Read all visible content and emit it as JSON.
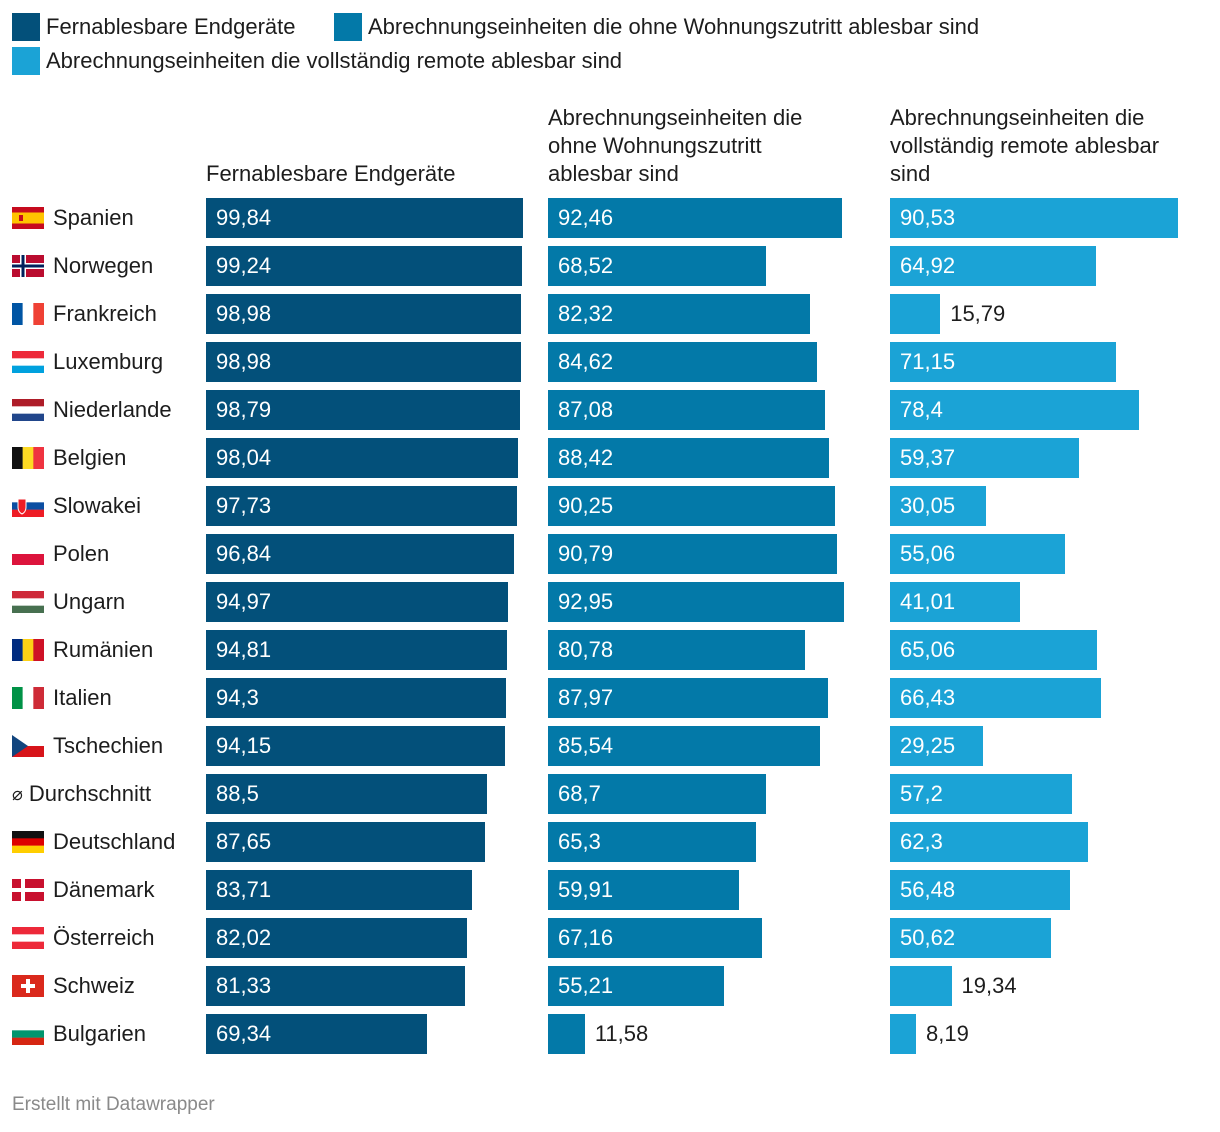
{
  "legend": [
    {
      "label": "Fernablesbare Endgeräte",
      "color": "#03507a"
    },
    {
      "label": "Abrechnungseinheiten die ohne Wohnungszutritt ablesbar sind",
      "color": "#0379a8"
    },
    {
      "label": "Abrechnungseinheiten die vollständig remote ablesbar sind",
      "color": "#1ba3d6"
    }
  ],
  "chart_data": {
    "type": "bar",
    "orientation": "horizontal",
    "layout": "small multiples",
    "xlim": [
      0,
      100
    ],
    "categories": [
      "Spanien",
      "Norwegen",
      "Frankreich",
      "Luxemburg",
      "Niederlande",
      "Belgien",
      "Slowakei",
      "Polen",
      "Ungarn",
      "Rumänien",
      "Italien",
      "Tschechien",
      "Durchschnitt",
      "Deutschland",
      "Dänemark",
      "Österreich",
      "Schweiz",
      "Bulgarien"
    ],
    "average_symbol": "⌀",
    "category_flags": [
      "es",
      "no",
      "fr",
      "lu",
      "nl",
      "be",
      "sk",
      "pl",
      "hu",
      "ro",
      "it",
      "cz",
      "avg",
      "de",
      "dk",
      "at",
      "ch",
      "bg"
    ],
    "series": [
      {
        "name": "Fernablesbare Endgeräte",
        "color": "#03507a",
        "values": [
          99.84,
          99.24,
          98.98,
          98.98,
          98.79,
          98.04,
          97.73,
          96.84,
          94.97,
          94.81,
          94.3,
          94.15,
          88.5,
          87.65,
          83.71,
          82.02,
          81.33,
          69.34
        ],
        "labels": [
          "99,84",
          "99,24",
          "98,98",
          "98,98",
          "98,79",
          "98,04",
          "97,73",
          "96,84",
          "94,97",
          "94,81",
          "94,3",
          "94,15",
          "88,5",
          "87,65",
          "83,71",
          "82,02",
          "81,33",
          "69,34"
        ]
      },
      {
        "name": "Abrechnungseinheiten die ohne Wohnungszutritt ablesbar sind",
        "color": "#0379a8",
        "values": [
          92.46,
          68.52,
          82.32,
          84.62,
          87.08,
          88.42,
          90.25,
          90.79,
          92.95,
          80.78,
          87.97,
          85.54,
          68.7,
          65.3,
          59.91,
          67.16,
          55.21,
          11.58
        ],
        "labels": [
          "92,46",
          "68,52",
          "82,32",
          "84,62",
          "87,08",
          "88,42",
          "90,25",
          "90,79",
          "92,95",
          "80,78",
          "87,97",
          "85,54",
          "68,7",
          "65,3",
          "59,91",
          "67,16",
          "55,21",
          "11,58"
        ]
      },
      {
        "name": "Abrechnungseinheiten die vollständig remote ablesbar sind",
        "color": "#1ba3d6",
        "values": [
          90.53,
          64.92,
          15.79,
          71.15,
          78.4,
          59.37,
          30.05,
          55.06,
          41.01,
          65.06,
          66.43,
          29.25,
          57.2,
          62.3,
          56.48,
          50.62,
          19.34,
          8.19
        ],
        "labels": [
          "90,53",
          "64,92",
          "15,79",
          "71,15",
          "78,4",
          "59,37",
          "30,05",
          "55,06",
          "41,01",
          "65,06",
          "66,43",
          "29,25",
          "57,2",
          "62,3",
          "56,48",
          "50,62",
          "19,34",
          "8,19"
        ]
      }
    ],
    "column_titles": [
      "Fernablesbare Endgeräte",
      "Abrechnungseinheiten die ohne Wohnungszutritt ablesbar sind",
      "Abrechnungseinheiten die vollständig remote ablesbar sind"
    ],
    "grid": false,
    "legend_position": "top-left"
  },
  "footer": {
    "credit": "Erstellt mit Datawrapper"
  }
}
